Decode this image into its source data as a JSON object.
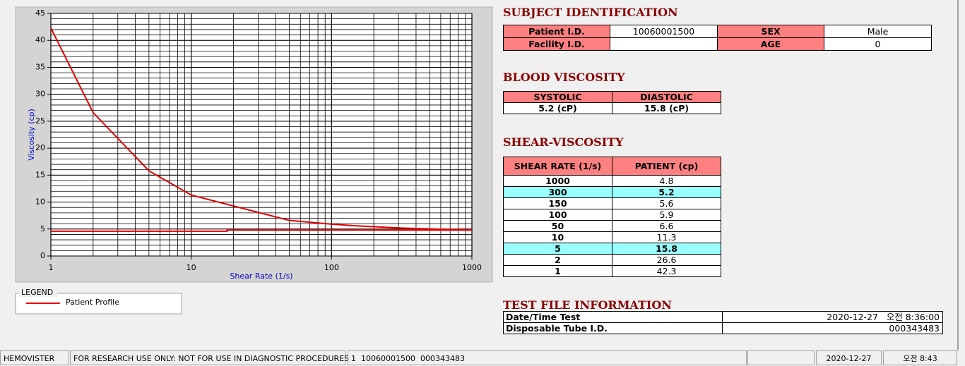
{
  "chart_data": {
    "type": "line",
    "x": [
      1,
      2,
      5,
      10,
      50,
      100,
      150,
      300,
      1000
    ],
    "series": [
      {
        "name": "Patient Profile",
        "color": "#e00000",
        "values": [
          42.3,
          26.6,
          15.8,
          11.3,
          6.6,
          5.9,
          5.6,
          5.2,
          4.8
        ]
      },
      {
        "color": "#e00000",
        "x": [
          1,
          18,
          18,
          1000
        ],
        "values": [
          4.6,
          4.6,
          4.8,
          4.8
        ]
      }
    ],
    "xlabel": "Shear Rate (1/s)",
    "ylabel": "Viscosity (cp)",
    "xscale": "log",
    "xlim": [
      1,
      1000
    ],
    "xticks": [
      1,
      10,
      100,
      1000
    ],
    "ylim": [
      0,
      45
    ],
    "yticks": [
      0,
      5,
      10,
      15,
      20,
      25,
      30,
      35,
      40,
      45
    ],
    "grid": true,
    "legend_title": "LEGEND"
  },
  "subject_identification": {
    "title": "SUBJECT IDENTIFICATION",
    "fields": [
      {
        "label": "Patient I.D.",
        "value": "10060001500"
      },
      {
        "label": "SEX",
        "value": "Male"
      },
      {
        "label": "Facility I.D."
      },
      {
        "label": "AGE",
        "value": 0
      }
    ]
  },
  "blood_viscosity": {
    "title": "BLOOD VISCOSITY",
    "headers": [
      "SYSTOLIC",
      "DIASTOLIC"
    ],
    "values": [
      "5.2 (cP)",
      "15.8 (cP)"
    ]
  },
  "shear_viscosity": {
    "title": "SHEAR-VISCOSITY",
    "headers": [
      "SHEAR RATE (1/s)",
      "PATIENT (cp)"
    ],
    "rows": [
      [
        1000,
        4.8
      ],
      [
        300,
        5.2
      ],
      [
        150,
        5.6
      ],
      [
        100,
        5.9
      ],
      [
        50,
        6.6
      ],
      [
        10,
        11.3
      ],
      [
        5,
        15.8
      ],
      [
        2,
        26.6
      ],
      [
        1,
        42.3
      ]
    ],
    "highlighted_rows": [
      1,
      6
    ]
  },
  "test_file_information": {
    "title": "TEST FILE INFORMATION",
    "rows": [
      [
        "Date/Time Test",
        "2020-12-27   오전 8:36:00"
      ],
      [
        "Disposable Tube I.D.",
        "000343483"
      ]
    ]
  },
  "status_bar": [
    "HEMOVISTER",
    "FOR RESEARCH USE ONLY: NOT FOR USE IN DIAGNOSTIC PROCEDURES",
    "1  10060001500  000343483",
    "2020-12-27",
    "오전 8:43"
  ]
}
